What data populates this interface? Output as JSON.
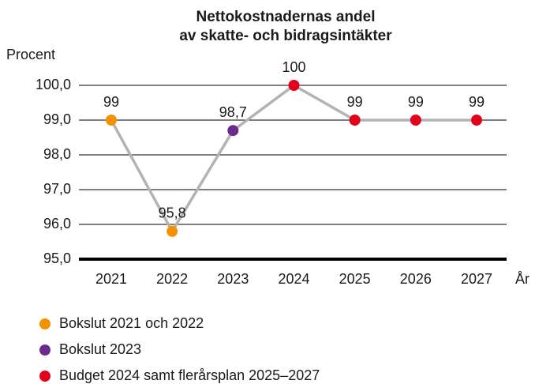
{
  "chart_data": {
    "type": "line",
    "title": [
      "Nettokostnadernas andel",
      "av skatte- och bidragsintäkter"
    ],
    "y_label": "Procent",
    "x_label": "År",
    "categories": [
      "2021",
      "2022",
      "2023",
      "2024",
      "2025",
      "2026",
      "2027"
    ],
    "values": [
      99,
      95.8,
      98.7,
      100,
      99,
      99,
      99
    ],
    "value_labels": [
      "99",
      "95,8",
      "98,7",
      "100",
      "99",
      "99",
      "99"
    ],
    "line_color": "#b3b3b3",
    "point_colors": [
      "#f39200",
      "#f39200",
      "#6a2c8c",
      "#e2001a",
      "#e2001a",
      "#e2001a",
      "#e2001a"
    ],
    "ylim": [
      95,
      100
    ],
    "yticks": [
      {
        "value": 95,
        "label": "95,0"
      },
      {
        "value": 96,
        "label": "96,0"
      },
      {
        "value": 97,
        "label": "97,0"
      },
      {
        "value": 98,
        "label": "98,0"
      },
      {
        "value": 99,
        "label": "99,0"
      },
      {
        "value": 100,
        "label": "100,0"
      }
    ],
    "grid": true,
    "legend": [
      {
        "name": "Bokslut 2021 och 2022",
        "color": "#f39200"
      },
      {
        "name": "Bokslut 2023",
        "color": "#6a2c8c"
      },
      {
        "name": "Budget 2024 samt flerårsplan 2025–2027",
        "color": "#e2001a"
      }
    ]
  }
}
